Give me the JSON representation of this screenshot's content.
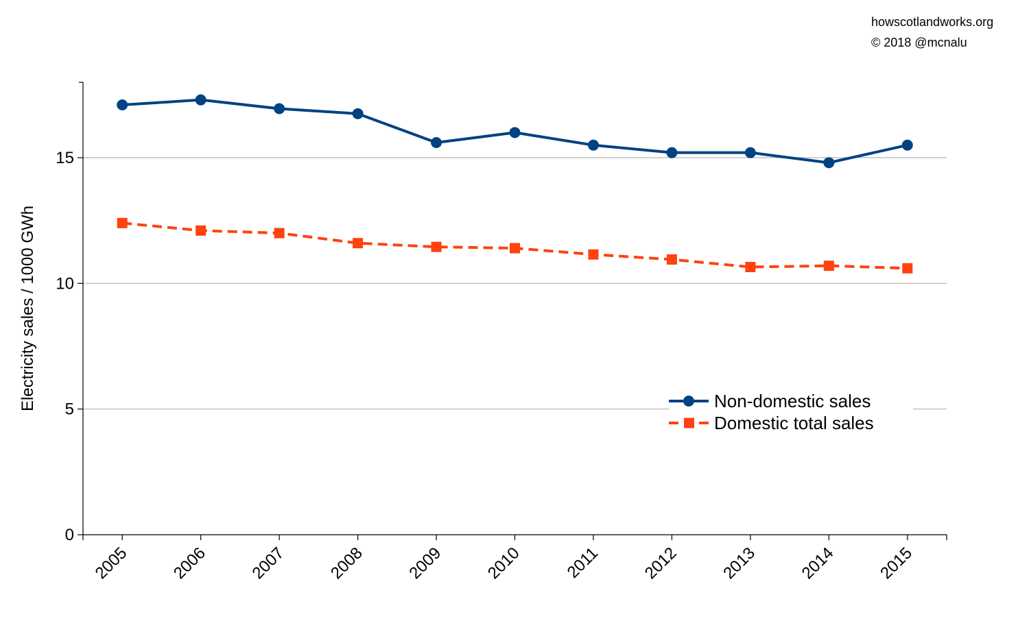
{
  "credits": {
    "site": "howscotlandworks.org",
    "copyright": "© 2018  @mcnalu"
  },
  "chart_data": {
    "type": "line",
    "title": "",
    "xlabel": "",
    "ylabel": "Electricity sales / 1000 GWh",
    "categories": [
      "2005",
      "2006",
      "2007",
      "2008",
      "2009",
      "2010",
      "2011",
      "2012",
      "2013",
      "2014",
      "2015"
    ],
    "ylim": [
      0,
      18
    ],
    "yticks": [
      0,
      5,
      10,
      15
    ],
    "grid": "horizontal",
    "legend_position": "right",
    "series": [
      {
        "name": "Non-domestic sales",
        "values": [
          17.1,
          17.3,
          16.95,
          16.75,
          15.6,
          16.0,
          15.5,
          15.2,
          15.2,
          14.8,
          15.5
        ],
        "color": "#004282",
        "marker": "circle",
        "style": "solid"
      },
      {
        "name": "Domestic total sales",
        "values": [
          12.4,
          12.1,
          12.0,
          11.6,
          11.45,
          11.4,
          11.15,
          10.95,
          10.65,
          10.7,
          10.6
        ],
        "color": "#ff420e",
        "marker": "square",
        "style": "dashed"
      }
    ]
  }
}
